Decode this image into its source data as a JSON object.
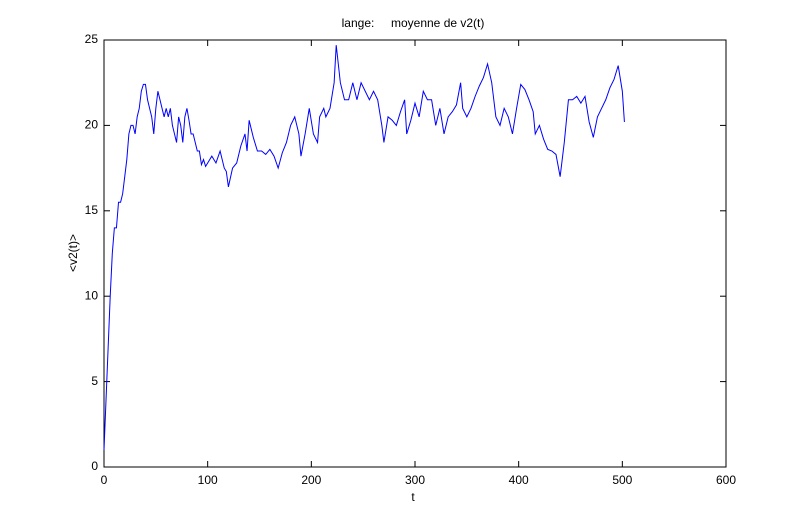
{
  "chart_data": {
    "type": "line",
    "title": "lange:     moyenne de v2(t)",
    "x_label": "t",
    "y_label": "<v2(t)>",
    "xlim": [
      0,
      600
    ],
    "xticks": [
      0,
      100,
      200,
      300,
      400,
      500,
      600
    ],
    "ylim": [
      0,
      25
    ],
    "yticks": [
      0,
      5,
      10,
      15,
      20,
      25
    ],
    "series": [
      {
        "color": "#0000ff",
        "x": [
          0,
          2,
          4,
          6,
          8,
          10,
          12,
          14,
          16,
          18,
          20,
          22,
          24,
          26,
          28,
          30,
          32,
          34,
          36,
          38,
          40,
          42,
          44,
          46,
          48,
          50,
          52,
          54,
          56,
          58,
          60,
          62,
          64,
          66,
          68,
          70,
          72,
          74,
          76,
          78,
          80,
          82,
          84,
          86,
          88,
          90,
          92,
          94,
          96,
          98,
          100,
          104,
          108,
          112,
          116,
          118,
          120,
          124,
          128,
          132,
          136,
          138,
          140,
          144,
          148,
          152,
          156,
          160,
          164,
          168,
          172,
          176,
          180,
          184,
          188,
          190,
          194,
          198,
          202,
          206,
          208,
          212,
          214,
          218,
          222,
          224,
          228,
          232,
          236,
          240,
          244,
          248,
          252,
          256,
          260,
          264,
          268,
          270,
          274,
          278,
          282,
          286,
          290,
          292,
          296,
          300,
          304,
          308,
          312,
          316,
          320,
          324,
          328,
          332,
          336,
          340,
          344,
          346,
          350,
          354,
          358,
          362,
          366,
          370,
          374,
          378,
          382,
          386,
          390,
          394,
          398,
          402,
          406,
          410,
          414,
          416,
          420,
          424,
          428,
          432,
          436,
          440,
          444,
          448,
          452,
          456,
          460,
          464,
          468,
          472,
          476,
          480,
          484,
          488,
          492,
          496,
          500,
          502
        ],
        "values": [
          1,
          4,
          7,
          10,
          12.5,
          14,
          14,
          15.5,
          15.5,
          16,
          17,
          18,
          19.5,
          20,
          20,
          19.5,
          20.5,
          21,
          22,
          22.4,
          22.4,
          21.5,
          21,
          20.5,
          19.5,
          21,
          22,
          21.5,
          21,
          20.5,
          21,
          20.5,
          21,
          20,
          19.5,
          19,
          20.5,
          20,
          19,
          20.5,
          21,
          20.3,
          19.5,
          19.5,
          19,
          18.5,
          18.5,
          17.7,
          18,
          17.6,
          17.8,
          18.2,
          17.8,
          18.5,
          17.5,
          17.3,
          16.4,
          17.5,
          17.8,
          18.8,
          19.5,
          18.5,
          20.3,
          19.3,
          18.5,
          18.5,
          18.3,
          18.6,
          18.2,
          17.5,
          18.4,
          19,
          20,
          20.5,
          19.5,
          18.2,
          19.5,
          21,
          19.5,
          19,
          20.5,
          21,
          20.5,
          21,
          22.5,
          24.7,
          22.5,
          21.5,
          21.5,
          22.5,
          21.5,
          22.5,
          22,
          21.5,
          22,
          21.5,
          20,
          19,
          20.5,
          20.3,
          20,
          20.8,
          21.5,
          19.5,
          20.3,
          21.3,
          20.5,
          22,
          21.5,
          21.5,
          20,
          21,
          19.5,
          20.5,
          20.8,
          21.2,
          22.5,
          21,
          20.5,
          21,
          21.7,
          22.3,
          22.8,
          23.6,
          22.5,
          20.5,
          20,
          21,
          20.5,
          19.5,
          21,
          22.4,
          22.1,
          21.5,
          20.8,
          19.5,
          20,
          19.2,
          18.6,
          18.5,
          18.3,
          17,
          19,
          21.5,
          21.5,
          21.7,
          21.3,
          21.7,
          20.2,
          19.3,
          20.5,
          21,
          21.5,
          22.2,
          22.7,
          23.5,
          22,
          20.2
        ]
      }
    ]
  }
}
